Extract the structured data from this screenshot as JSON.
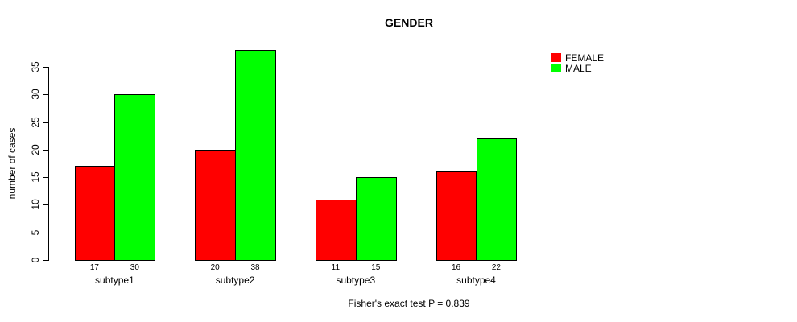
{
  "title": "GENDER",
  "ylabel": "number of cases",
  "footer": "Fisher's exact test P = 0.839",
  "legend": [
    {
      "label": "FEMALE",
      "color": "#ff0000"
    },
    {
      "label": "MALE",
      "color": "#00ff00"
    }
  ],
  "chart_data": {
    "type": "bar",
    "title": "GENDER",
    "xlabel": "",
    "ylabel": "number of cases",
    "categories": [
      "subtype1",
      "subtype2",
      "subtype3",
      "subtype4"
    ],
    "series": [
      {
        "name": "FEMALE",
        "color": "#ff0000",
        "values": [
          17,
          20,
          11,
          16
        ]
      },
      {
        "name": "MALE",
        "color": "#00ff00",
        "values": [
          30,
          38,
          15,
          22
        ]
      }
    ],
    "ylim": [
      0,
      35
    ],
    "yticks": [
      0,
      5,
      10,
      15,
      20,
      25,
      30,
      35
    ],
    "grid": false,
    "legend_position": "top-right",
    "bar_value_labels": true,
    "annotation": "Fisher's exact test P = 0.839"
  }
}
